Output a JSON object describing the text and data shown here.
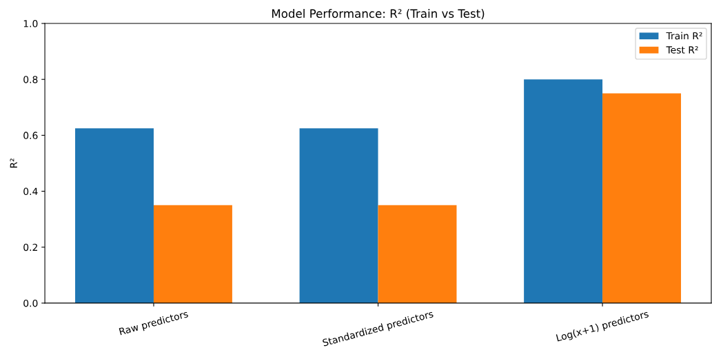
{
  "chart_data": {
    "type": "bar",
    "title": "Model Performance: R² (Train vs Test)",
    "ylabel": "R²",
    "categories": [
      "Raw predictors",
      "Standardized predictors",
      "Log(x+1) predictors"
    ],
    "series": [
      {
        "name": "Train R²",
        "color": "#1f77b4",
        "values": [
          0.625,
          0.625,
          0.8
        ]
      },
      {
        "name": "Test R²",
        "color": "#ff7f0e",
        "values": [
          0.35,
          0.35,
          0.75
        ]
      }
    ],
    "ylim": [
      0,
      1.0
    ],
    "yticks": [
      {
        "value": 0,
        "label": "0.0"
      },
      0.2,
      0.4,
      0.6,
      0.8,
      {
        "value": 1.0,
        "label": "1.0"
      }
    ],
    "grid": false,
    "legend": "top right"
  }
}
